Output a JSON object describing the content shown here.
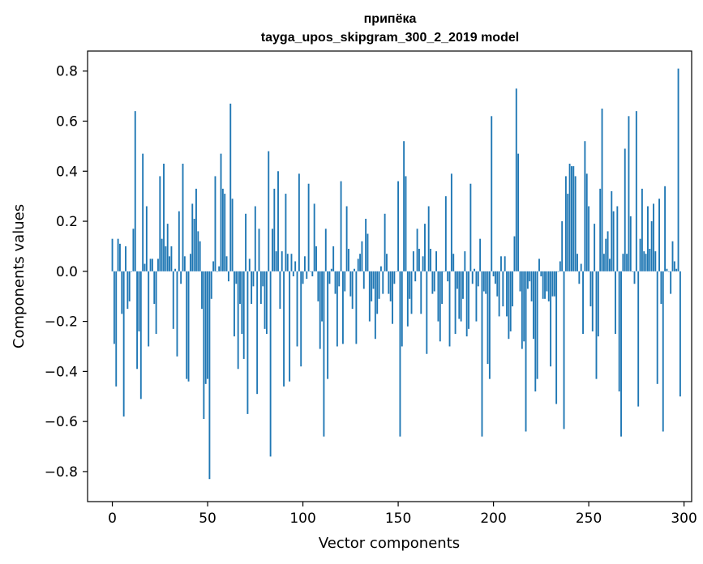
{
  "chart_data": {
    "type": "bar",
    "title_line1": "припёка",
    "title_line2": "tayga_upos_skipgram_300_2_2019 model",
    "xlabel": "Vector components",
    "ylabel": "Components values",
    "xlim": [
      -13,
      304
    ],
    "ylim": [
      -0.92,
      0.88
    ],
    "xticks": [
      0,
      50,
      100,
      150,
      200,
      250,
      300
    ],
    "xtick_labels": [
      "0",
      "50",
      "100",
      "150",
      "200",
      "250",
      "300"
    ],
    "yticks": [
      -0.8,
      -0.6,
      -0.4,
      -0.2,
      0.0,
      0.2,
      0.4,
      0.6,
      0.8
    ],
    "ytick_labels": [
      "−0.8",
      "−0.6",
      "−0.4",
      "−0.2",
      "0.0",
      "0.2",
      "0.4",
      "0.6",
      "0.8"
    ],
    "bar_color": "#1f77b4",
    "values": [
      0.13,
      -0.29,
      -0.46,
      0.13,
      0.11,
      -0.17,
      -0.58,
      0.1,
      -0.15,
      -0.12,
      0.0,
      0.17,
      0.64,
      -0.39,
      -0.24,
      -0.51,
      0.47,
      0.03,
      0.26,
      -0.3,
      0.05,
      0.05,
      -0.13,
      -0.25,
      0.05,
      0.38,
      0.13,
      0.43,
      0.1,
      0.19,
      0.06,
      0.1,
      -0.23,
      0.01,
      -0.34,
      0.24,
      -0.05,
      0.43,
      0.06,
      -0.43,
      -0.44,
      0.07,
      0.27,
      0.21,
      0.33,
      0.16,
      0.12,
      -0.15,
      -0.59,
      -0.45,
      -0.43,
      -0.83,
      -0.11,
      0.04,
      0.38,
      0.0,
      0.02,
      0.47,
      0.33,
      0.31,
      0.06,
      -0.04,
      0.67,
      0.29,
      -0.26,
      -0.05,
      -0.39,
      -0.13,
      -0.25,
      -0.35,
      0.23,
      -0.57,
      0.05,
      -0.13,
      -0.06,
      0.26,
      -0.49,
      0.17,
      -0.13,
      -0.06,
      -0.23,
      -0.25,
      0.48,
      -0.74,
      0.17,
      0.33,
      0.08,
      0.4,
      -0.15,
      0.08,
      -0.46,
      0.31,
      0.07,
      -0.44,
      0.07,
      -0.02,
      0.04,
      -0.3,
      0.39,
      -0.38,
      -0.05,
      0.06,
      -0.03,
      0.35,
      0.0,
      -0.02,
      0.27,
      0.1,
      -0.12,
      -0.31,
      -0.2,
      -0.66,
      0.17,
      -0.43,
      -0.05,
      0.01,
      0.1,
      -0.09,
      -0.3,
      -0.06,
      0.36,
      -0.29,
      -0.08,
      0.26,
      0.09,
      -0.1,
      -0.15,
      0.01,
      -0.29,
      0.05,
      0.07,
      0.12,
      -0.07,
      0.21,
      0.15,
      -0.2,
      -0.12,
      -0.07,
      -0.27,
      -0.17,
      -0.11,
      0.02,
      -0.09,
      0.23,
      0.07,
      -0.09,
      -0.12,
      -0.21,
      -0.05,
      0.0,
      0.36,
      -0.66,
      -0.3,
      0.52,
      0.38,
      -0.22,
      -0.11,
      -0.17,
      0.08,
      -0.04,
      0.17,
      0.09,
      -0.17,
      0.06,
      0.19,
      -0.33,
      0.26,
      0.09,
      -0.09,
      -0.08,
      0.08,
      -0.2,
      -0.28,
      -0.13,
      0.0,
      0.3,
      -0.04,
      -0.3,
      0.39,
      0.07,
      -0.25,
      -0.07,
      -0.19,
      -0.2,
      -0.11,
      0.08,
      -0.26,
      -0.23,
      0.35,
      -0.05,
      0.01,
      -0.2,
      -0.06,
      0.13,
      -0.66,
      -0.08,
      -0.09,
      -0.37,
      -0.43,
      0.62,
      -0.02,
      -0.05,
      -0.1,
      -0.18,
      0.06,
      -0.14,
      0.06,
      -0.18,
      -0.27,
      -0.24,
      -0.14,
      0.14,
      0.73,
      0.47,
      -0.08,
      -0.31,
      -0.28,
      -0.64,
      -0.07,
      -0.04,
      -0.12,
      -0.27,
      -0.48,
      -0.43,
      0.05,
      -0.02,
      -0.11,
      -0.11,
      -0.08,
      -0.12,
      -0.38,
      -0.1,
      -0.1,
      -0.53,
      0.0,
      0.04,
      0.2,
      -0.63,
      0.38,
      0.31,
      0.43,
      0.42,
      0.42,
      0.38,
      0.07,
      -0.05,
      0.03,
      -0.25,
      0.52,
      0.39,
      0.26,
      -0.14,
      -0.24,
      0.19,
      -0.43,
      -0.26,
      0.33,
      0.65,
      0.07,
      0.13,
      0.16,
      0.05,
      0.32,
      0.24,
      -0.25,
      0.26,
      -0.48,
      -0.66,
      0.07,
      0.49,
      0.07,
      0.62,
      0.22,
      0.0,
      -0.05,
      0.64,
      -0.54,
      0.13,
      0.33,
      0.08,
      0.07,
      0.26,
      0.09,
      0.2,
      0.27,
      0.08,
      -0.45,
      0.29,
      -0.13,
      -0.64,
      0.34,
      0.01,
      0.0,
      -0.09,
      0.12,
      0.04,
      0.01,
      0.81,
      -0.5
    ]
  }
}
